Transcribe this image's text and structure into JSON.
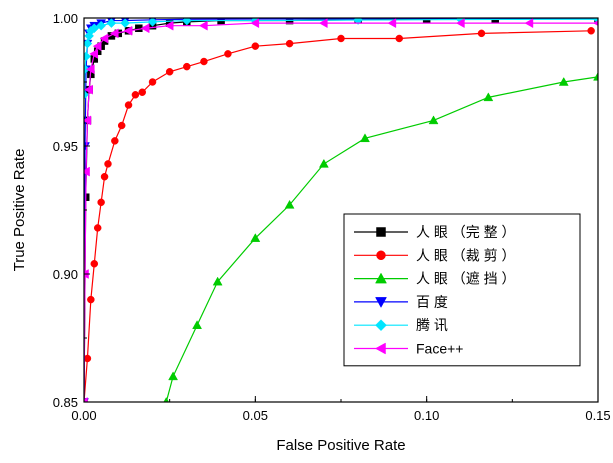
{
  "chart_data": {
    "type": "line",
    "title": "",
    "xlabel": "False Positive Rate",
    "ylabel": "True Positive Rate",
    "xlim": [
      0.0,
      0.15
    ],
    "ylim": [
      0.85,
      1.0
    ],
    "x_ticks": [
      0.0,
      0.05,
      0.1,
      0.15
    ],
    "x_tick_labels": [
      "0.00",
      "0.05",
      "0.10",
      "0.15"
    ],
    "y_ticks": [
      0.85,
      0.9,
      0.95,
      1.0
    ],
    "y_tick_labels": [
      "0.85",
      "0.90",
      "0.95",
      "1.00"
    ],
    "grid": false,
    "legend_position": "bottom-right",
    "series": [
      {
        "name": "人 眼 （完 整 ）",
        "color": "#000000",
        "marker": "square",
        "x": [
          0.0,
          0.0005,
          0.001,
          0.0015,
          0.002,
          0.003,
          0.004,
          0.005,
          0.006,
          0.008,
          0.01,
          0.013,
          0.016,
          0.02,
          0.025,
          0.03,
          0.04,
          0.06,
          0.08,
          0.1,
          0.12,
          0.15
        ],
        "y": [
          0.85,
          0.93,
          0.96,
          0.972,
          0.978,
          0.984,
          0.987,
          0.989,
          0.991,
          0.993,
          0.994,
          0.995,
          0.996,
          0.997,
          0.998,
          0.9985,
          0.999,
          0.999,
          0.9993,
          0.9995,
          0.9997,
          0.9998
        ]
      },
      {
        "name": "人 眼 （裁 剪 ）",
        "color": "#ff0000",
        "marker": "circle",
        "x": [
          0.0,
          0.001,
          0.002,
          0.003,
          0.004,
          0.005,
          0.006,
          0.007,
          0.009,
          0.011,
          0.013,
          0.015,
          0.017,
          0.02,
          0.025,
          0.03,
          0.035,
          0.042,
          0.05,
          0.06,
          0.075,
          0.092,
          0.116,
          0.148
        ],
        "y": [
          0.85,
          0.867,
          0.89,
          0.904,
          0.918,
          0.928,
          0.938,
          0.943,
          0.952,
          0.958,
          0.966,
          0.97,
          0.971,
          0.975,
          0.979,
          0.981,
          0.983,
          0.986,
          0.989,
          0.99,
          0.992,
          0.992,
          0.994,
          0.995
        ]
      },
      {
        "name": "人 眼 （遮 挡 ）",
        "color": "#00cc00",
        "marker": "triangle-up",
        "x": [
          0.024,
          0.026,
          0.033,
          0.039,
          0.05,
          0.06,
          0.07,
          0.082,
          0.102,
          0.118,
          0.14,
          0.15
        ],
        "y": [
          0.85,
          0.86,
          0.88,
          0.897,
          0.914,
          0.927,
          0.943,
          0.953,
          0.96,
          0.969,
          0.975,
          0.977
        ]
      },
      {
        "name": "百 度",
        "color": "#0000ff",
        "marker": "triangle-down",
        "x": [
          0.0,
          0.0003,
          0.0006,
          0.001,
          0.0015,
          0.002,
          0.003,
          0.005,
          0.008,
          0.012,
          0.02,
          0.03,
          0.05,
          0.08,
          0.11,
          0.15
        ],
        "y": [
          0.85,
          0.95,
          0.98,
          0.99,
          0.994,
          0.996,
          0.997,
          0.998,
          0.999,
          0.999,
          0.9993,
          0.9995,
          0.9996,
          0.9997,
          0.9998,
          0.9998
        ]
      },
      {
        "name": "腾 讯",
        "color": "#00e5ff",
        "marker": "diamond",
        "x": [
          0.0,
          0.0003,
          0.0006,
          0.001,
          0.0015,
          0.002,
          0.003,
          0.005,
          0.008,
          0.012,
          0.02,
          0.03,
          0.05,
          0.08,
          0.11,
          0.15
        ],
        "y": [
          0.97,
          0.98,
          0.985,
          0.99,
          0.993,
          0.995,
          0.996,
          0.997,
          0.998,
          0.998,
          0.9985,
          0.999,
          0.999,
          0.9992,
          0.9994,
          0.9995
        ]
      },
      {
        "name": "Face++",
        "color": "#ff00ff",
        "marker": "triangle-left",
        "x": [
          0.0,
          0.0003,
          0.0006,
          0.001,
          0.0015,
          0.002,
          0.003,
          0.004,
          0.006,
          0.009,
          0.013,
          0.018,
          0.025,
          0.035,
          0.05,
          0.07,
          0.09,
          0.11,
          0.13,
          0.15
        ],
        "y": [
          0.85,
          0.9,
          0.94,
          0.96,
          0.972,
          0.98,
          0.986,
          0.989,
          0.992,
          0.994,
          0.995,
          0.996,
          0.997,
          0.997,
          0.998,
          0.998,
          0.998,
          0.998,
          0.998,
          0.998
        ]
      }
    ]
  }
}
